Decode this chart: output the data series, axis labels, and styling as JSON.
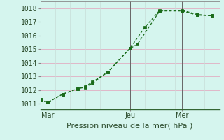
{
  "line1_x": [
    0,
    0.5,
    1.5,
    2.5,
    3.0,
    3.5,
    4.5,
    6.0,
    6.5,
    8.0,
    9.5,
    10.5,
    11.5
  ],
  "line1_y": [
    1011.3,
    1011.1,
    1011.7,
    1012.1,
    1012.2,
    1012.5,
    1013.3,
    1015.05,
    1015.35,
    1017.8,
    1017.8,
    1017.5,
    1017.45
  ],
  "line2_x": [
    0,
    0.5,
    1.5,
    2.5,
    3.0,
    3.5,
    4.5,
    6.0,
    7.0,
    8.0,
    9.5,
    10.5,
    11.5
  ],
  "line2_y": [
    1011.3,
    1011.1,
    1011.7,
    1012.1,
    1012.25,
    1012.6,
    1013.3,
    1015.05,
    1016.6,
    1017.85,
    1017.85,
    1017.55,
    1017.45
  ],
  "yticks": [
    1011,
    1012,
    1013,
    1014,
    1015,
    1016,
    1017,
    1018
  ],
  "ylim": [
    1010.6,
    1018.5
  ],
  "xlim": [
    0,
    12.0
  ],
  "xtick_positions": [
    0.5,
    6.0,
    9.5
  ],
  "xtick_labels": [
    "Mar",
    "Jeu",
    "Mer"
  ],
  "vline_positions": [
    0.5,
    6.0,
    9.5
  ],
  "xlabel": "Pression niveau de la mer( hPa )",
  "line_color": "#1a6b1a",
  "bg_color": "#d5f5ee",
  "grid_color_h": "#e0b8c8",
  "grid_color_v": "#c8ddd8",
  "xlabel_fontsize": 8,
  "tick_fontsize": 7
}
